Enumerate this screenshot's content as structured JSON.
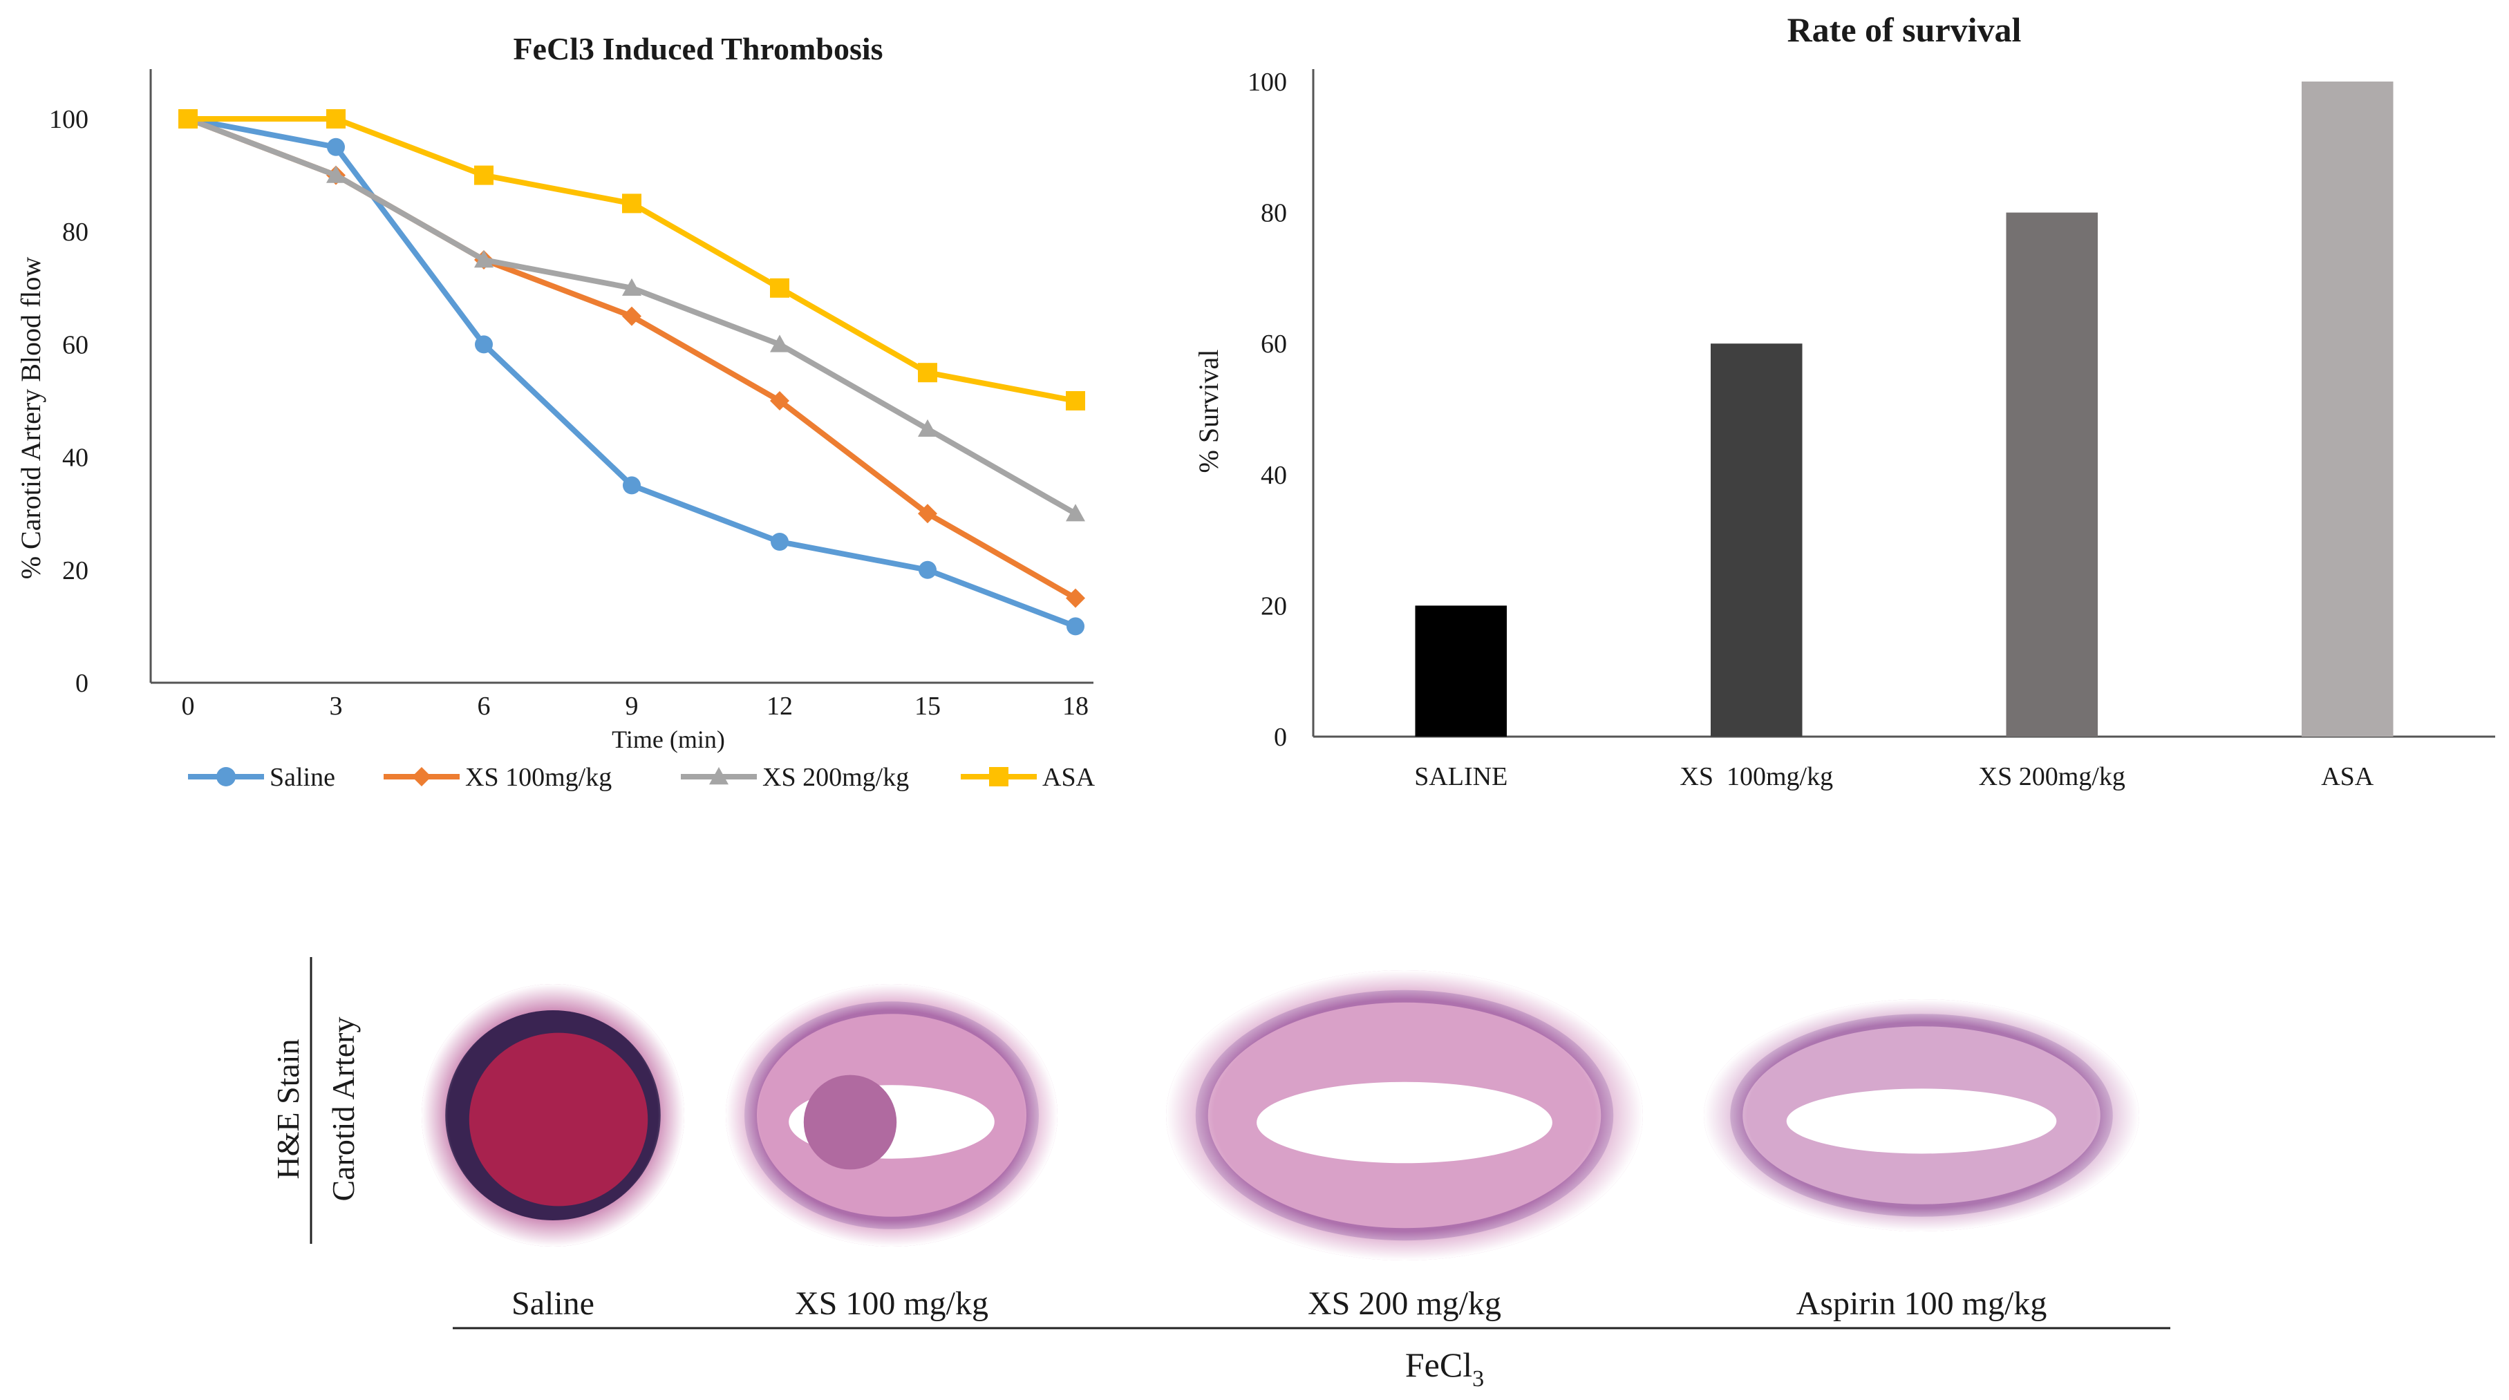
{
  "chart_data": [
    {
      "type": "line",
      "title": "FeCl3 Induced Thrombosis",
      "xlabel": "Time (min)",
      "ylabel": "% Carotid Artery Blood flow",
      "x": [
        0,
        3,
        6,
        9,
        12,
        15,
        18
      ],
      "xlim": [
        0,
        18
      ],
      "ylim": [
        0,
        100
      ],
      "yticks": [
        "0",
        "20",
        "40",
        "60",
        "80",
        "100"
      ],
      "xticks": [
        "0",
        "3",
        "6",
        "9",
        "12",
        "15",
        "18"
      ],
      "grid": false,
      "legend_position": "bottom",
      "series": [
        {
          "name": "Saline",
          "marker": "circle",
          "color": "#5b9bd5",
          "values": [
            100,
            95,
            60,
            35,
            25,
            20,
            10
          ]
        },
        {
          "name": "XS 100mg/kg",
          "marker": "diamond",
          "color": "#ed7d31",
          "values": [
            100,
            90,
            75,
            65,
            50,
            30,
            15
          ]
        },
        {
          "name": "XS 200mg/kg",
          "marker": "triangle",
          "color": "#a5a5a5",
          "values": [
            100,
            90,
            75,
            70,
            60,
            45,
            30
          ]
        },
        {
          "name": "ASA",
          "marker": "square",
          "color": "#ffc000",
          "values": [
            100,
            100,
            90,
            85,
            70,
            55,
            50
          ]
        }
      ]
    },
    {
      "type": "bar",
      "title": "Rate of survival",
      "xlabel": "",
      "ylabel": "% Survival",
      "categories": [
        "SALINE",
        "XS  100mg/kg",
        "XS 200mg/kg",
        "ASA"
      ],
      "values": [
        20,
        60,
        80,
        100
      ],
      "colors": [
        "#000000",
        "#404040",
        "#757171",
        "#afabab"
      ],
      "ylim": [
        0,
        100
      ],
      "yticks": [
        "0",
        "20",
        "40",
        "60",
        "80",
        "100"
      ],
      "grid": false
    }
  ],
  "histology": {
    "row_label_line1": "H&E Stain",
    "row_label_line2": "Carotid Artery",
    "group_label": "FeCl",
    "group_label_sub": "3",
    "panels": [
      {
        "label": "Saline",
        "tissue_color": "#cf8fb9",
        "lumen_color": "#a8224e",
        "lumen_fill": 1.0
      },
      {
        "label": "XS 100 mg/kg",
        "tissue_color": "#d89ac4",
        "lumen_color": "#ffffff",
        "lumen_fill": 0.4
      },
      {
        "label": "XS 200 mg/kg",
        "tissue_color": "#d9a1c8",
        "lumen_color": "#ffffff",
        "lumen_fill": 0.1
      },
      {
        "label": "Aspirin 100 mg/kg",
        "tissue_color": "#d6a8cd",
        "lumen_color": "#ffffff",
        "lumen_fill": 0.0
      }
    ]
  }
}
